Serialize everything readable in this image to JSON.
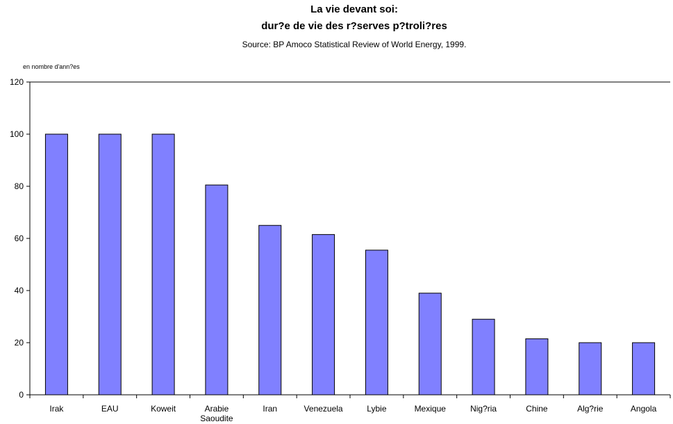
{
  "chart_data": {
    "type": "bar",
    "title_lines": [
      "La vie devant soi:",
      "dur?e de vie des r?serves p?troli?res"
    ],
    "subtitle": "Source: BP Amoco Statistical Review of World Energy, 1999.",
    "ylabel": "en nombre d'ann?es",
    "xlabel": "",
    "categories": [
      [
        "Irak"
      ],
      [
        "EAU"
      ],
      [
        "Koweit"
      ],
      [
        "Arabie",
        "Saoudite"
      ],
      [
        "Iran"
      ],
      [
        "Venezuela"
      ],
      [
        "Lybie"
      ],
      [
        "Mexique"
      ],
      [
        "Nig?ria"
      ],
      [
        "Chine"
      ],
      [
        "Alg?rie"
      ],
      [
        "Angola"
      ]
    ],
    "values": [
      100,
      100,
      100,
      80.5,
      65,
      61.5,
      55.5,
      39,
      29,
      21.5,
      20,
      20
    ],
    "ylim": [
      0,
      120
    ],
    "yticks": [
      0,
      20,
      40,
      60,
      80,
      100,
      120
    ],
    "grid": false,
    "legend": "none",
    "colors": {
      "bar_fill": "#8080ff",
      "bar_stroke": "#000000",
      "axis": "#000000"
    }
  }
}
